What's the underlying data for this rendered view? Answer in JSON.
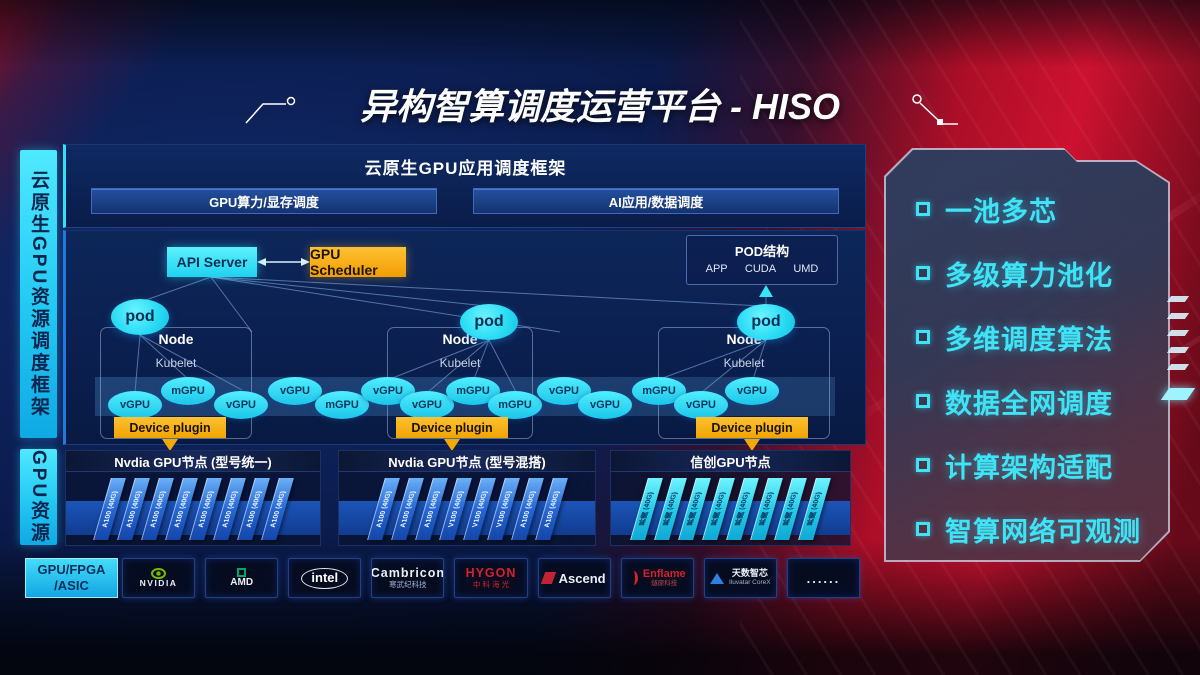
{
  "page": {
    "title": "异构智算调度运营平台 - HISO"
  },
  "sidebar": {
    "scheduling_framework": "云原生GPU资源调度框架",
    "gpu_resources": "GPU资源"
  },
  "framework": {
    "title": "云原生GPU应用调度框架",
    "bars": [
      {
        "label": "GPU算力/显存调度"
      },
      {
        "label": "AI应用/数据调度"
      }
    ]
  },
  "cluster": {
    "api_server": "API Server",
    "gpu_scheduler": "GPU Scheduler",
    "pod_box": {
      "title": "POD结构",
      "items": [
        "APP",
        "CUDA",
        "UMD"
      ]
    },
    "pod_label": "pod",
    "node_label": "Node",
    "kubelet_label": "Kubelet",
    "device_plugin_label": "Device plugin",
    "gpu_instances": [
      {
        "label": "vGPU",
        "row": "bottom"
      },
      {
        "label": "mGPU",
        "row": "top"
      },
      {
        "label": "vGPU",
        "row": "bottom"
      },
      {
        "label": "vGPU",
        "row": "top"
      },
      {
        "label": "mGPU",
        "row": "bottom"
      },
      {
        "label": "vGPU",
        "row": "top"
      },
      {
        "label": "vGPU",
        "row": "bottom"
      },
      {
        "label": "mGPU",
        "row": "top"
      },
      {
        "label": "mGPU",
        "row": "bottom"
      },
      {
        "label": "vGPU",
        "row": "top"
      },
      {
        "label": "vGPU",
        "row": "bottom"
      },
      {
        "label": "mGPU",
        "row": "top"
      },
      {
        "label": "vGPU",
        "row": "bottom"
      },
      {
        "label": "vGPU",
        "row": "top"
      }
    ]
  },
  "gpu_node_sections": [
    {
      "title": "Nvdia GPU节点 (型号统一)",
      "style": "blue",
      "cards": [
        "A100 (40G)",
        "A100 (40G)",
        "A100 (40G)",
        "A100 (40G)",
        "A100 (40G)",
        "A100 (40G)",
        "A100 (40G)",
        "A100 (40G)"
      ]
    },
    {
      "title": "Nvdia GPU节点 (型号混搭)",
      "style": "blue",
      "cards": [
        "A100 (40G)",
        "A100 (40G)",
        "A100 (40G)",
        "V100 (40G)",
        "V100 (40G)",
        "V100 (40G)",
        "A100 (40G)",
        "A100 (40G)"
      ]
    },
    {
      "title": "信创GPU节点",
      "style": "cyan",
      "cards": [
        "昇腾 (40G)",
        "昇腾 (40G)",
        "昇腾 (40G)",
        "昇腾 (40G)",
        "昇腾 (40G)",
        "昇腾 (40G)",
        "昇腾 (40G)",
        "昇腾 (40G)"
      ]
    }
  ],
  "hardware_bar": {
    "category_line1": "GPU/FPGA",
    "category_line2": "/ASIC",
    "vendors": [
      {
        "kind": "nvidia",
        "name": "NVIDIA"
      },
      {
        "kind": "amd",
        "name": "AMD"
      },
      {
        "kind": "intel",
        "name": "intel"
      },
      {
        "kind": "stack",
        "name": "Cambricon",
        "sub": "寒武纪科技",
        "accent": "#e9eef8",
        "sub_accent": "#9fb2d4"
      },
      {
        "kind": "stack",
        "name": "HYGON",
        "sub": "中 科 海 光",
        "accent": "#d3212e",
        "sub_accent": "#d3212e"
      },
      {
        "kind": "ascend",
        "name": "Ascend"
      },
      {
        "kind": "enflame",
        "name": "Enflame",
        "sub": "燧原科技",
        "accent": "#d3212e",
        "sub_accent": "#c04550"
      },
      {
        "kind": "iluvatar",
        "name": "天数智芯",
        "sub": "Iluvatar CoreX"
      },
      {
        "kind": "dots",
        "name": "......"
      }
    ]
  },
  "features": {
    "items": [
      "一池多芯",
      "多级算力池化",
      "多维调度算法",
      "数据全网调度",
      "计算架构适配",
      "智算网络可观测"
    ]
  },
  "colors": {
    "cyan": "#35e6f8",
    "amber": "#f2a900",
    "panel_blue": "#0c2458",
    "red": "#c41230",
    "nvidia_green": "#76b900"
  }
}
